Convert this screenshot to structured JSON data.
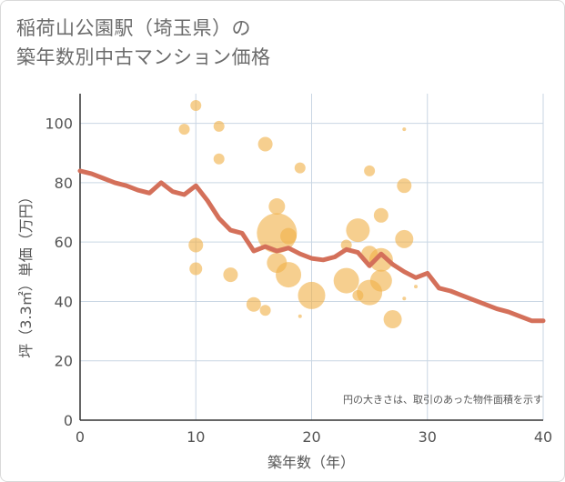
{
  "title": {
    "line1": "稲荷山公園駅（埼玉県）の",
    "line2": "築年数別中古マンション価格"
  },
  "colors": {
    "bubble": "#f0b24a",
    "line": "#d4705a",
    "grid": "#c9d6e3",
    "axis": "#333333"
  },
  "chart_data": {
    "type": "scatter",
    "xlabel": "築年数（年）",
    "ylabel": "坪（3.3㎡）単価（万円）",
    "xlim": [
      0,
      40
    ],
    "ylim": [
      0,
      110
    ],
    "x_ticks": [
      "0",
      "10",
      "20",
      "30",
      "40"
    ],
    "y_ticks": [
      "0",
      "20",
      "40",
      "60",
      "80",
      "100"
    ],
    "x_tick_values": [
      0,
      10,
      20,
      30,
      40
    ],
    "y_tick_values": [
      0,
      20,
      40,
      60,
      80,
      100
    ],
    "grid": true,
    "note": "円の大きさは、取引のあった物件面積を示す",
    "bubbles": [
      {
        "x": 9,
        "y": 98,
        "size": 6
      },
      {
        "x": 10,
        "y": 106,
        "size": 6
      },
      {
        "x": 10,
        "y": 59,
        "size": 8
      },
      {
        "x": 10,
        "y": 51,
        "size": 7
      },
      {
        "x": 12,
        "y": 99,
        "size": 6
      },
      {
        "x": 12,
        "y": 88,
        "size": 6
      },
      {
        "x": 13,
        "y": 49,
        "size": 8
      },
      {
        "x": 15,
        "y": 39,
        "size": 8
      },
      {
        "x": 16,
        "y": 93,
        "size": 8
      },
      {
        "x": 16,
        "y": 37,
        "size": 6
      },
      {
        "x": 17,
        "y": 72,
        "size": 9
      },
      {
        "x": 17,
        "y": 63,
        "size": 22
      },
      {
        "x": 17,
        "y": 53,
        "size": 11
      },
      {
        "x": 18,
        "y": 62,
        "size": 9
      },
      {
        "x": 18,
        "y": 49,
        "size": 14
      },
      {
        "x": 19,
        "y": 85,
        "size": 6
      },
      {
        "x": 19,
        "y": 35,
        "size": 2
      },
      {
        "x": 20,
        "y": 42,
        "size": 15
      },
      {
        "x": 23,
        "y": 59,
        "size": 6
      },
      {
        "x": 23,
        "y": 47,
        "size": 14
      },
      {
        "x": 24,
        "y": 64,
        "size": 13
      },
      {
        "x": 24,
        "y": 42,
        "size": 6
      },
      {
        "x": 25,
        "y": 84,
        "size": 6
      },
      {
        "x": 25,
        "y": 56,
        "size": 9
      },
      {
        "x": 25,
        "y": 43,
        "size": 14
      },
      {
        "x": 26,
        "y": 69,
        "size": 8
      },
      {
        "x": 26,
        "y": 54,
        "size": 13
      },
      {
        "x": 26,
        "y": 47,
        "size": 12
      },
      {
        "x": 27,
        "y": 34,
        "size": 10
      },
      {
        "x": 28,
        "y": 98,
        "size": 2
      },
      {
        "x": 28,
        "y": 79,
        "size": 8
      },
      {
        "x": 28,
        "y": 61,
        "size": 10
      },
      {
        "x": 28,
        "y": 41,
        "size": 2
      },
      {
        "x": 29,
        "y": 45,
        "size": 2
      }
    ],
    "trend": {
      "x": [
        0,
        1,
        2,
        3,
        4,
        5,
        6,
        7,
        8,
        9,
        10,
        11,
        12,
        13,
        14,
        15,
        16,
        17,
        18,
        19,
        20,
        21,
        22,
        23,
        24,
        25,
        26,
        27,
        28,
        29,
        30,
        31,
        32,
        33,
        34,
        35,
        36,
        37,
        38,
        39,
        40
      ],
      "y": [
        84,
        83,
        81.5,
        80,
        79,
        77.5,
        76.5,
        80,
        77,
        76,
        79,
        74,
        68,
        64,
        63,
        57,
        58.5,
        57,
        58,
        56,
        54.5,
        54,
        55,
        57.5,
        56.5,
        52,
        56,
        52.5,
        50,
        48,
        49.5,
        44.5,
        43.5,
        42,
        40.5,
        39,
        37.5,
        36.5,
        35,
        33.5,
        33.5
      ]
    }
  }
}
